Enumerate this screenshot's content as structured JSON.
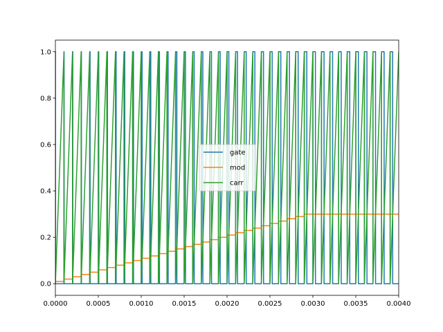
{
  "chart_data": {
    "type": "line",
    "xlim": [
      0.0,
      0.004
    ],
    "ylim": [
      -0.05,
      1.05
    ],
    "x_ticks": [
      "0.0000",
      "0.0005",
      "0.0010",
      "0.0015",
      "0.0020",
      "0.0025",
      "0.0030",
      "0.0035",
      "0.0040"
    ],
    "y_ticks": [
      "0.0",
      "0.2",
      "0.4",
      "0.6",
      "0.8",
      "1.0"
    ],
    "grid": false,
    "legend_position": "center",
    "carrier_period": 0.0001,
    "mod_step": 0.0001,
    "mod_increment": 0.01,
    "mod_max": 0.3,
    "series": [
      {
        "name": "gate",
        "color": "#1f77b4",
        "description": "PWM: 1 while carr < mod, else 0"
      },
      {
        "name": "mod",
        "color": "#ff7f0e",
        "description": "staircase 0.01 per 0.0001 s up to 0.30"
      },
      {
        "name": "carr",
        "color": "#2ca02c",
        "description": "sawtooth 0 to 1 period 0.0001 s"
      }
    ]
  }
}
